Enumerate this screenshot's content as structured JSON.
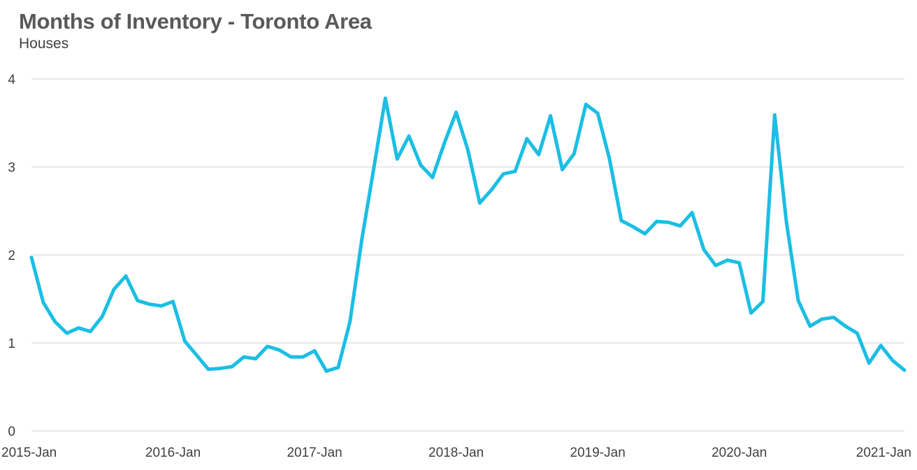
{
  "title": "Months of Inventory - Toronto Area",
  "subtitle": "Houses",
  "colors": {
    "line": "#1BBEE4",
    "grid": "#D9D9D9",
    "text": "#404040",
    "title": "#595959"
  },
  "chart_data": {
    "type": "line",
    "title": "Months of Inventory - Toronto Area",
    "subtitle": "Houses",
    "ylim": [
      0,
      4
    ],
    "y_ticks": [
      "0",
      "1",
      "2",
      "3",
      "4"
    ],
    "x_ticks": [
      "2015-Jan",
      "2016-Jan",
      "2017-Jan",
      "2018-Jan",
      "2019-Jan",
      "2020-Jan",
      "2021-Jan"
    ],
    "grid": true,
    "legend": "none",
    "x": [
      "2015-01",
      "2015-02",
      "2015-03",
      "2015-04",
      "2015-05",
      "2015-06",
      "2015-07",
      "2015-08",
      "2015-09",
      "2015-10",
      "2015-11",
      "2015-12",
      "2016-01",
      "2016-02",
      "2016-03",
      "2016-04",
      "2016-05",
      "2016-06",
      "2016-07",
      "2016-08",
      "2016-09",
      "2016-10",
      "2016-11",
      "2016-12",
      "2017-01",
      "2017-02",
      "2017-03",
      "2017-04",
      "2017-05",
      "2017-06",
      "2017-07",
      "2017-08",
      "2017-09",
      "2017-10",
      "2017-11",
      "2017-12",
      "2018-01",
      "2018-02",
      "2018-03",
      "2018-04",
      "2018-05",
      "2018-06",
      "2018-07",
      "2018-08",
      "2018-09",
      "2018-10",
      "2018-11",
      "2018-12",
      "2019-01",
      "2019-02",
      "2019-03",
      "2019-04",
      "2019-05",
      "2019-06",
      "2019-07",
      "2019-08",
      "2019-09",
      "2019-10",
      "2019-11",
      "2019-12",
      "2020-01",
      "2020-02",
      "2020-03",
      "2020-04",
      "2020-05",
      "2020-06",
      "2020-07",
      "2020-08",
      "2020-09",
      "2020-10",
      "2020-11",
      "2020-12",
      "2021-01",
      "2021-02",
      "2021-03"
    ],
    "series": [
      {
        "values": [
          1.97,
          1.46,
          1.24,
          1.11,
          1.17,
          1.13,
          1.3,
          1.61,
          1.76,
          1.48,
          1.44,
          1.42,
          1.47,
          1.02,
          0.86,
          0.7,
          0.71,
          0.73,
          0.84,
          0.82,
          0.96,
          0.92,
          0.84,
          0.84,
          0.91,
          0.68,
          0.72,
          1.24,
          2.17,
          2.97,
          3.78,
          3.09,
          3.35,
          3.02,
          2.88,
          3.27,
          3.62,
          3.19,
          2.59,
          2.74,
          2.92,
          2.95,
          3.32,
          3.14,
          3.58,
          2.97,
          3.15,
          3.71,
          3.61,
          3.09,
          2.39,
          2.32,
          2.24,
          2.38,
          2.37,
          2.33,
          2.48,
          2.06,
          1.88,
          1.94,
          1.91,
          1.34,
          1.47,
          3.59,
          2.37,
          1.48,
          1.19,
          1.27,
          1.29,
          1.19,
          1.11,
          0.77,
          0.97,
          0.8,
          0.69
        ]
      }
    ]
  }
}
